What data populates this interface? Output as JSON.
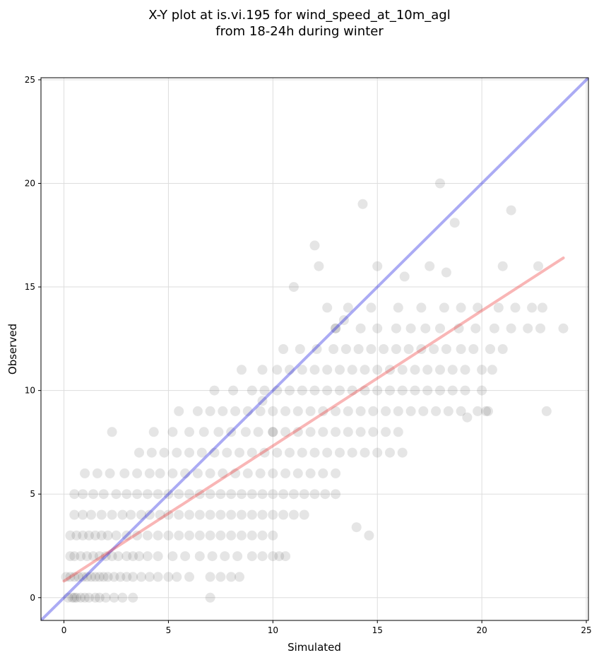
{
  "chart_data": {
    "type": "scatter",
    "title": "X-Y plot at is.vi.195 for wind_speed_at_10m_agl",
    "subtitle": "from 18-24h during winter",
    "xlabel": "Simulated",
    "ylabel": "Observed",
    "xlim": [
      -1.1,
      25.1
    ],
    "ylim": [
      -1.1,
      25.1
    ],
    "xticks": [
      0,
      5,
      10,
      15,
      20,
      25
    ],
    "yticks": [
      0,
      5,
      10,
      15,
      20,
      25
    ],
    "grid": true,
    "legend": "none",
    "colors": {
      "points": "#333333",
      "identity_line": "#0000dd",
      "fit_line": "#ee2222",
      "grid": "#dddddd"
    },
    "reference_lines": [
      {
        "kind": "identity",
        "x": [
          -1.1,
          25.1
        ],
        "y": [
          -1.1,
          25.1
        ],
        "color": "#0000dd"
      },
      {
        "kind": "fit",
        "x": [
          0,
          23.9
        ],
        "y": [
          0.8,
          16.4
        ],
        "color": "#ee2222"
      }
    ],
    "points": {
      "x": [
        0.2,
        0.4,
        0.5,
        0.6,
        0.8,
        1.0,
        1.2,
        1.5,
        1.7,
        2.0,
        2.4,
        2.8,
        3.3,
        0.1,
        0.3,
        0.5,
        0.7,
        0.9,
        1.1,
        1.3,
        1.5,
        1.7,
        1.9,
        2.1,
        2.4,
        2.7,
        3.0,
        3.3,
        3.7,
        4.1,
        4.5,
        5.0,
        5.4,
        6.0,
        7.0,
        7.5,
        8.0,
        8.4,
        0.3,
        0.5,
        0.8,
        1.1,
        1.4,
        1.7,
        2.0,
        2.3,
        2.6,
        3.0,
        3.3,
        3.6,
        4.0,
        4.5,
        5.2,
        5.8,
        6.5,
        7.1,
        7.7,
        8.3,
        9.0,
        9.5,
        10.0,
        10.3,
        10.6,
        0.3,
        0.6,
        0.9,
        1.2,
        1.5,
        1.8,
        2.1,
        2.5,
        3.0,
        3.5,
        4.0,
        4.5,
        5.0,
        5.5,
        6.0,
        6.5,
        7.0,
        7.5,
        8.0,
        8.5,
        9.0,
        9.5,
        10.0,
        0.5,
        0.9,
        1.3,
        1.8,
        2.3,
        2.8,
        3.2,
        3.7,
        4.1,
        4.6,
        5.0,
        5.5,
        6.0,
        6.5,
        7.0,
        7.5,
        8.0,
        8.5,
        9.0,
        9.5,
        10.0,
        10.5,
        11.0,
        11.5,
        0.5,
        0.9,
        1.4,
        1.9,
        2.5,
        3.0,
        3.5,
        4.0,
        4.5,
        5.0,
        5.5,
        6.0,
        6.5,
        7.0,
        7.5,
        8.0,
        8.5,
        9.0,
        9.5,
        10.0,
        10.5,
        11.0,
        11.5,
        12.0,
        12.5,
        13.0,
        1.0,
        1.6,
        2.2,
        2.9,
        3.5,
        4.1,
        4.6,
        5.2,
        5.8,
        6.4,
        7.0,
        7.6,
        8.2,
        8.8,
        9.4,
        10.0,
        10.6,
        11.2,
        11.8,
        12.4,
        13.0,
        3.6,
        4.2,
        4.8,
        5.4,
        6.0,
        6.6,
        7.2,
        7.8,
        8.4,
        9.0,
        9.6,
        10.2,
        10.8,
        11.4,
        12.0,
        12.6,
        13.2,
        13.8,
        14.4,
        15.0,
        15.6,
        16.2,
        2.3,
        4.3,
        5.2,
        6.0,
        6.7,
        7.4,
        8.0,
        8.7,
        9.3,
        10.0,
        10.6,
        11.2,
        11.8,
        12.4,
        13.0,
        13.6,
        14.2,
        14.8,
        15.4,
        16.0,
        5.5,
        6.4,
        7.0,
        7.6,
        8.2,
        8.8,
        9.4,
        10.0,
        10.6,
        11.2,
        11.8,
        12.4,
        13.0,
        13.6,
        14.2,
        14.8,
        15.4,
        16.0,
        16.6,
        17.2,
        17.8,
        18.4,
        19.0,
        19.8,
        20.2,
        7.2,
        8.1,
        9.0,
        9.6,
        10.2,
        10.8,
        11.4,
        12.0,
        12.6,
        13.2,
        13.8,
        14.4,
        15.0,
        15.6,
        16.2,
        16.8,
        17.4,
        18.0,
        18.6,
        19.2,
        20.0,
        8.5,
        9.5,
        10.2,
        10.8,
        11.4,
        12.0,
        12.6,
        13.2,
        13.8,
        14.4,
        15.0,
        15.6,
        16.2,
        16.8,
        17.4,
        18.0,
        18.6,
        19.2,
        20.0,
        20.5,
        10.5,
        11.3,
        12.1,
        12.9,
        13.5,
        14.1,
        14.7,
        15.3,
        15.9,
        16.5,
        17.1,
        17.7,
        18.3,
        19.0,
        19.6,
        20.4,
        21.0,
        13.0,
        14.2,
        15.0,
        15.9,
        16.6,
        17.3,
        18.0,
        18.9,
        19.7,
        20.6,
        21.4,
        22.2,
        22.8,
        12.6,
        13.6,
        14.7,
        16.0,
        17.1,
        18.2,
        19.0,
        19.8,
        20.8,
        21.6,
        22.4,
        22.9,
        11.0,
        15.0,
        21.0,
        22.7,
        18.0,
        21.4,
        18.3,
        14.3,
        18.7,
        9.5,
        13.4,
        13.0,
        10.0,
        12.0,
        23.9,
        23.1,
        20.3,
        19.3,
        17.5,
        12.2,
        14.6,
        14.0,
        7.0,
        16.3
      ],
      "y": [
        0,
        0,
        0,
        0,
        0,
        0,
        0,
        0,
        0,
        0,
        0,
        0,
        0,
        1,
        1,
        1,
        1,
        1,
        1,
        1,
        1,
        1,
        1,
        1,
        1,
        1,
        1,
        1,
        1,
        1,
        1,
        1,
        1,
        1,
        1,
        1,
        1,
        1,
        2,
        2,
        2,
        2,
        2,
        2,
        2,
        2,
        2,
        2,
        2,
        2,
        2,
        2,
        2,
        2,
        2,
        2,
        2,
        2,
        2,
        2,
        2,
        2,
        2,
        3,
        3,
        3,
        3,
        3,
        3,
        3,
        3,
        3,
        3,
        3,
        3,
        3,
        3,
        3,
        3,
        3,
        3,
        3,
        3,
        3,
        3,
        3,
        4,
        4,
        4,
        4,
        4,
        4,
        4,
        4,
        4,
        4,
        4,
        4,
        4,
        4,
        4,
        4,
        4,
        4,
        4,
        4,
        4,
        4,
        4,
        4,
        5,
        5,
        5,
        5,
        5,
        5,
        5,
        5,
        5,
        5,
        5,
        5,
        5,
        5,
        5,
        5,
        5,
        5,
        5,
        5,
        5,
        5,
        5,
        5,
        5,
        5,
        6,
        6,
        6,
        6,
        6,
        6,
        6,
        6,
        6,
        6,
        6,
        6,
        6,
        6,
        6,
        6,
        6,
        6,
        6,
        6,
        6,
        7,
        7,
        7,
        7,
        7,
        7,
        7,
        7,
        7,
        7,
        7,
        7,
        7,
        7,
        7,
        7,
        7,
        7,
        7,
        7,
        7,
        7,
        8,
        8,
        8,
        8,
        8,
        8,
        8,
        8,
        8,
        8,
        8,
        8,
        8,
        8,
        8,
        8,
        8,
        8,
        8,
        8,
        9,
        9,
        9,
        9,
        9,
        9,
        9,
        9,
        9,
        9,
        9,
        9,
        9,
        9,
        9,
        9,
        9,
        9,
        9,
        9,
        9,
        9,
        9,
        9,
        9,
        10,
        10,
        10,
        10,
        10,
        10,
        10,
        10,
        10,
        10,
        10,
        10,
        10,
        10,
        10,
        10,
        10,
        10,
        10,
        10,
        10,
        11,
        11,
        11,
        11,
        11,
        11,
        11,
        11,
        11,
        11,
        11,
        11,
        11,
        11,
        11,
        11,
        11,
        11,
        11,
        11,
        12,
        12,
        12,
        12,
        12,
        12,
        12,
        12,
        12,
        12,
        12,
        12,
        12,
        12,
        12,
        12,
        12,
        13,
        13,
        13,
        13,
        13,
        13,
        13,
        13,
        13,
        13,
        13,
        13,
        13,
        14,
        14,
        14,
        14,
        14,
        14,
        14,
        14,
        14,
        14,
        14,
        14,
        15,
        16,
        16,
        16,
        20,
        18.7,
        15.7,
        19,
        18.1,
        9.5,
        13.4,
        13,
        8,
        17,
        13,
        9,
        9,
        8.7,
        16,
        16,
        3,
        3.4,
        0,
        15.5
      ]
    }
  }
}
